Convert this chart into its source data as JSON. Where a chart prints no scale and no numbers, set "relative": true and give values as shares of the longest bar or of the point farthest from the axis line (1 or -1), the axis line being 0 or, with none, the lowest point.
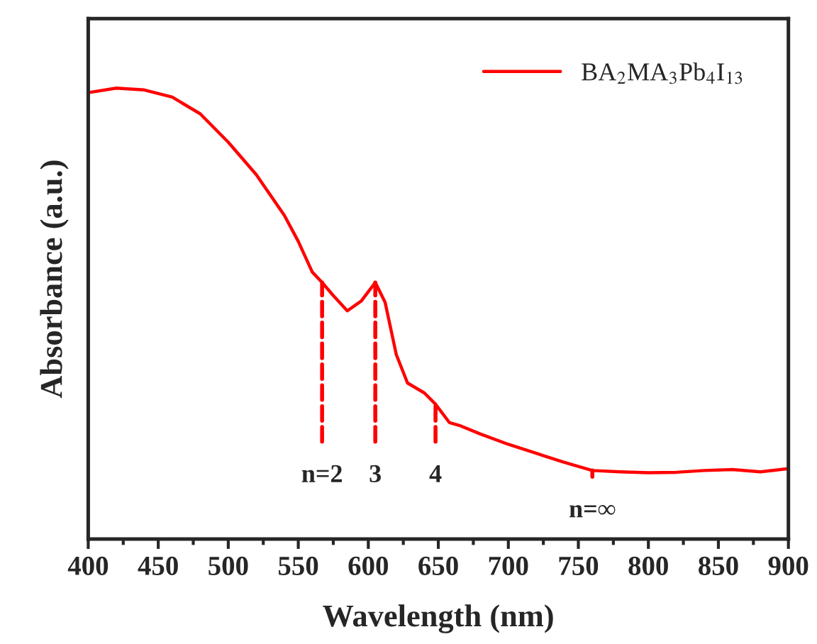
{
  "chart_data": {
    "type": "line",
    "xlabel": "Wavelength (nm)",
    "ylabel": "Absorbance (a.u.)",
    "relative": true,
    "x": [
      400,
      420,
      440,
      460,
      480,
      500,
      520,
      540,
      550,
      560,
      567,
      575,
      585,
      595,
      605,
      612,
      620,
      628,
      640,
      648,
      658,
      665,
      680,
      700,
      720,
      740,
      760,
      780,
      800,
      820,
      840,
      860,
      880,
      900
    ],
    "series": [
      {
        "name": "BA$_{2}$MA$_{3}$Pb$_{4}$I$_{13}$",
        "color": "#ff0000",
        "values": [
          0.99,
          1.0,
          0.996,
          0.98,
          0.943,
          0.88,
          0.808,
          0.718,
          0.66,
          0.592,
          0.569,
          0.54,
          0.506,
          0.528,
          0.569,
          0.525,
          0.409,
          0.346,
          0.324,
          0.299,
          0.258,
          0.252,
          0.233,
          0.21,
          0.19,
          0.17,
          0.152,
          0.149,
          0.147,
          0.148,
          0.152,
          0.154,
          0.149,
          0.156
        ]
      }
    ],
    "xlim": [
      400,
      900
    ],
    "xticks": [
      400,
      450,
      500,
      550,
      600,
      650,
      700,
      750,
      800,
      850,
      900
    ],
    "annotations": [
      {
        "text": "n=2",
        "x": 567,
        "y": 0.569
      },
      {
        "text": "3",
        "x": 605,
        "y": 0.569
      },
      {
        "text": "4",
        "x": 648,
        "y": 0.299
      },
      {
        "text": "n=∞",
        "x": 760,
        "y": 0.152
      }
    ],
    "legend": "top right",
    "marker": "none",
    "line_style": "solid",
    "grid": false
  }
}
